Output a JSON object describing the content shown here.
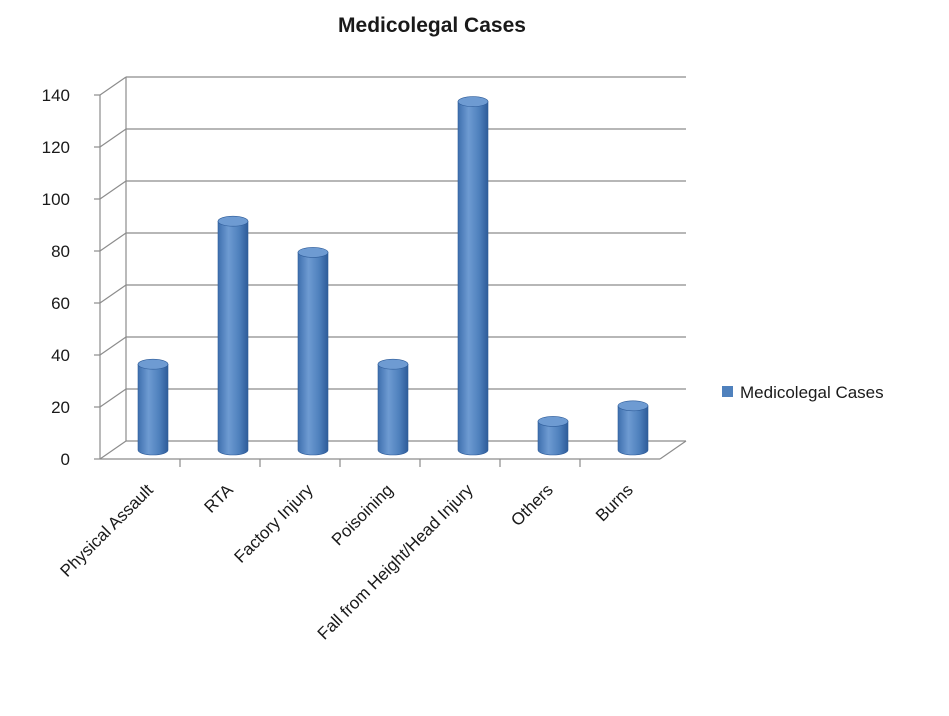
{
  "chart_data": {
    "type": "bar",
    "title": "Medicolegal Cases",
    "xlabel": "",
    "ylabel": "",
    "categories": [
      "Physical Assault",
      "RTA",
      "Factory Injury",
      "Poisoining",
      "Fall from Height/Head Injury",
      "Others",
      "Burns"
    ],
    "series": [
      {
        "name": "Medicolegal Cases",
        "values": [
          33,
          88,
          76,
          33,
          134,
          11,
          17
        ]
      }
    ],
    "ylim": [
      0,
      140
    ],
    "yticks": [
      0,
      20,
      40,
      60,
      80,
      100,
      120,
      140
    ],
    "grid": true,
    "legend_position": "right",
    "bar_style": "3d-cylinder",
    "colors": {
      "bar": "#4F81BD",
      "bar_dark": "#2E5C99",
      "bar_light": "#6E9BD2",
      "grid": "#8c8c8c",
      "axis": "#8c8c8c"
    }
  }
}
